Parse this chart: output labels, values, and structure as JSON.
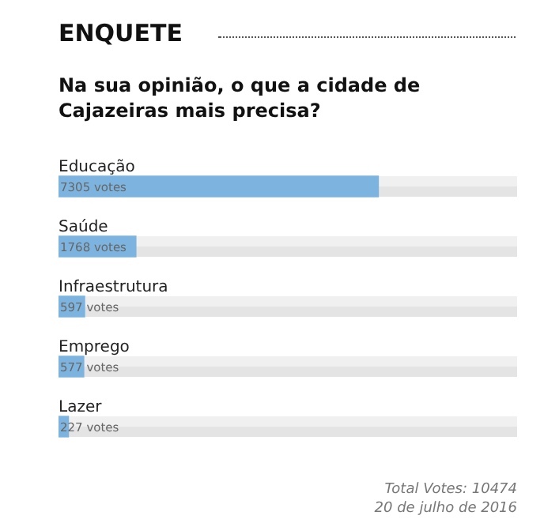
{
  "chart_data": {
    "type": "bar",
    "orientation": "horizontal",
    "title": "ENQUETE",
    "subtitle": "Na sua opinião, o que a cidade de Cajazeiras mais precisa?",
    "categories": [
      "Educação",
      "Saúde",
      "Infraestrutura",
      "Emprego",
      "Lazer"
    ],
    "values": [
      7305,
      1768,
      597,
      577,
      227
    ],
    "value_labels": [
      "7305 votes",
      "1768 votes",
      "597 votes",
      "577 votes",
      "227 votes"
    ],
    "color": "#7db4df",
    "legend": false,
    "annotations": [
      "Total Votes: 10474",
      "20 de julho de 2016"
    ]
  }
}
